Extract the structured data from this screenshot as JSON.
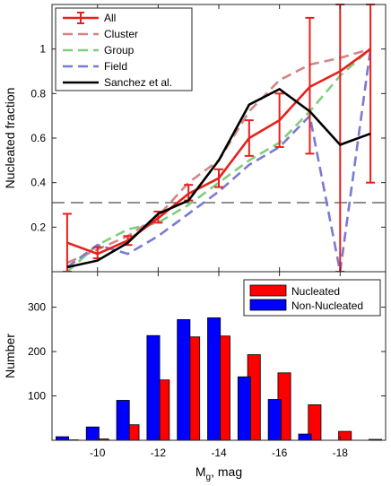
{
  "chart_data": [
    {
      "type": "line",
      "xlabel": "",
      "ylabel": "Nucleated fraction",
      "xlim": [
        -8.5,
        -19.5
      ],
      "ylim": [
        0,
        1.2
      ],
      "x_reversed": true,
      "y_ticks": [
        0.2,
        0.4,
        0.6,
        0.8,
        1
      ],
      "y_tick_labels": [
        "0.2",
        "0.4",
        "0.6",
        "0.8",
        "1"
      ],
      "legend_position": "top-left",
      "reference_line": {
        "y": 0.31,
        "style": "dashed",
        "color": "#4d4d4d"
      },
      "series": [
        {
          "name": "All",
          "color": "#e8201c",
          "style": "solid-errorbars",
          "x": [
            -9,
            -10,
            -11,
            -12,
            -13,
            -14,
            -15,
            -16,
            -17,
            -18,
            -19
          ],
          "y": [
            0.13,
            0.08,
            0.14,
            0.24,
            0.35,
            0.42,
            0.6,
            0.68,
            0.83,
            0.9,
            1.0
          ],
          "err_low": [
            0.13,
            0.02,
            0.02,
            0.02,
            0.03,
            0.04,
            0.08,
            0.12,
            0.3,
            0.9,
            0.6
          ],
          "err_high": [
            0.13,
            0.03,
            0.02,
            0.03,
            0.04,
            0.04,
            0.08,
            0.12,
            0.31,
            0.3,
            0.2
          ]
        },
        {
          "name": "Cluster",
          "color": "#d58585",
          "style": "dashed",
          "x": [
            -9,
            -10,
            -11,
            -12,
            -13,
            -14,
            -15,
            -16,
            -17,
            -18,
            -19
          ],
          "y": [
            0.04,
            0.1,
            0.16,
            0.25,
            0.4,
            0.5,
            0.72,
            0.86,
            0.93,
            0.96,
            1.0
          ]
        },
        {
          "name": "Group",
          "color": "#7fce7f",
          "style": "dashed",
          "x": [
            -9,
            -10,
            -11,
            -12,
            -13,
            -14,
            -15,
            -16,
            -17,
            -18,
            -19
          ],
          "y": [
            0.0,
            0.12,
            0.19,
            0.22,
            0.3,
            0.4,
            0.5,
            0.58,
            0.72,
            0.88,
            1.0
          ]
        },
        {
          "name": "Field",
          "color": "#7a7ad0",
          "style": "dashed",
          "x": [
            -9,
            -10,
            -11,
            -12,
            -13,
            -14,
            -15,
            -16,
            -17,
            -18,
            -19
          ],
          "y": [
            0.02,
            0.12,
            0.08,
            0.16,
            0.26,
            0.36,
            0.48,
            0.56,
            0.7,
            0.0,
            1.0
          ]
        },
        {
          "name": "Sanchez et al.",
          "color": "#000000",
          "style": "solid",
          "x": [
            -9,
            -10,
            -11,
            -12,
            -13,
            -14,
            -15,
            -16,
            -17,
            -18,
            -19
          ],
          "y": [
            0.02,
            0.05,
            0.13,
            0.26,
            0.32,
            0.5,
            0.75,
            0.82,
            0.72,
            0.57,
            0.62
          ]
        }
      ]
    },
    {
      "type": "bar",
      "xlabel": "M_g, mag",
      "xlabel_main": "M",
      "xlabel_sub": "g",
      "xlabel_rest": ", mag",
      "ylabel": "Number",
      "xlim": [
        -8.5,
        -19.5
      ],
      "ylim": [
        0,
        380
      ],
      "x_reversed": true,
      "x_ticks": [
        -10,
        -12,
        -14,
        -16,
        -18
      ],
      "x_tick_labels": [
        "-10",
        "-12",
        "-14",
        "-16",
        "-18"
      ],
      "y_ticks": [
        100,
        200,
        300
      ],
      "y_tick_labels": [
        "100",
        "200",
        "300"
      ],
      "legend_position": "top-right",
      "categories": [
        -9,
        -10,
        -11,
        -12,
        -13,
        -14,
        -15,
        -16,
        -17,
        -18,
        -19
      ],
      "series": [
        {
          "name": "Nucleated",
          "color": "#ff0000",
          "values": [
            1,
            3,
            35,
            136,
            233,
            235,
            193,
            152,
            80,
            20,
            2
          ]
        },
        {
          "name": "Non-Nucleated",
          "color": "#0000ff",
          "values": [
            8,
            30,
            90,
            236,
            272,
            276,
            143,
            92,
            14,
            0,
            0
          ]
        }
      ]
    }
  ]
}
